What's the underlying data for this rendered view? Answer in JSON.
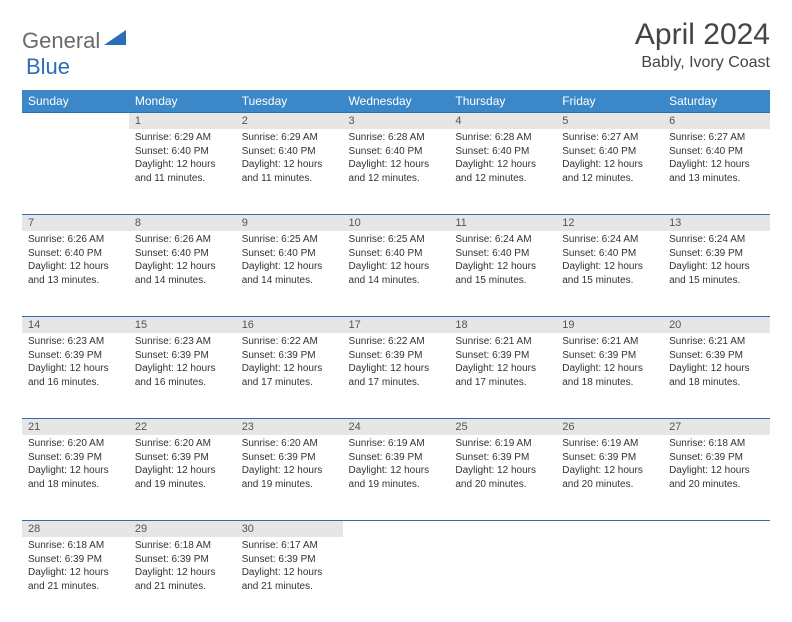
{
  "logo": {
    "part1": "General",
    "part2": "Blue"
  },
  "title": "April 2024",
  "location": "Bably, Ivory Coast",
  "colors": {
    "header_bg": "#3b87c8",
    "accent_line": "#2a6fb5",
    "daynum_bg": "#e6e6e6",
    "text": "#333333",
    "title_text": "#444444"
  },
  "columns": [
    "Sunday",
    "Monday",
    "Tuesday",
    "Wednesday",
    "Thursday",
    "Friday",
    "Saturday"
  ],
  "weeks": [
    [
      null,
      {
        "n": "1",
        "sr": "6:29 AM",
        "ss": "6:40 PM",
        "dl": "12 hours and 11 minutes."
      },
      {
        "n": "2",
        "sr": "6:29 AM",
        "ss": "6:40 PM",
        "dl": "12 hours and 11 minutes."
      },
      {
        "n": "3",
        "sr": "6:28 AM",
        "ss": "6:40 PM",
        "dl": "12 hours and 12 minutes."
      },
      {
        "n": "4",
        "sr": "6:28 AM",
        "ss": "6:40 PM",
        "dl": "12 hours and 12 minutes."
      },
      {
        "n": "5",
        "sr": "6:27 AM",
        "ss": "6:40 PM",
        "dl": "12 hours and 12 minutes."
      },
      {
        "n": "6",
        "sr": "6:27 AM",
        "ss": "6:40 PM",
        "dl": "12 hours and 13 minutes."
      }
    ],
    [
      {
        "n": "7",
        "sr": "6:26 AM",
        "ss": "6:40 PM",
        "dl": "12 hours and 13 minutes."
      },
      {
        "n": "8",
        "sr": "6:26 AM",
        "ss": "6:40 PM",
        "dl": "12 hours and 14 minutes."
      },
      {
        "n": "9",
        "sr": "6:25 AM",
        "ss": "6:40 PM",
        "dl": "12 hours and 14 minutes."
      },
      {
        "n": "10",
        "sr": "6:25 AM",
        "ss": "6:40 PM",
        "dl": "12 hours and 14 minutes."
      },
      {
        "n": "11",
        "sr": "6:24 AM",
        "ss": "6:40 PM",
        "dl": "12 hours and 15 minutes."
      },
      {
        "n": "12",
        "sr": "6:24 AM",
        "ss": "6:40 PM",
        "dl": "12 hours and 15 minutes."
      },
      {
        "n": "13",
        "sr": "6:24 AM",
        "ss": "6:39 PM",
        "dl": "12 hours and 15 minutes."
      }
    ],
    [
      {
        "n": "14",
        "sr": "6:23 AM",
        "ss": "6:39 PM",
        "dl": "12 hours and 16 minutes."
      },
      {
        "n": "15",
        "sr": "6:23 AM",
        "ss": "6:39 PM",
        "dl": "12 hours and 16 minutes."
      },
      {
        "n": "16",
        "sr": "6:22 AM",
        "ss": "6:39 PM",
        "dl": "12 hours and 17 minutes."
      },
      {
        "n": "17",
        "sr": "6:22 AM",
        "ss": "6:39 PM",
        "dl": "12 hours and 17 minutes."
      },
      {
        "n": "18",
        "sr": "6:21 AM",
        "ss": "6:39 PM",
        "dl": "12 hours and 17 minutes."
      },
      {
        "n": "19",
        "sr": "6:21 AM",
        "ss": "6:39 PM",
        "dl": "12 hours and 18 minutes."
      },
      {
        "n": "20",
        "sr": "6:21 AM",
        "ss": "6:39 PM",
        "dl": "12 hours and 18 minutes."
      }
    ],
    [
      {
        "n": "21",
        "sr": "6:20 AM",
        "ss": "6:39 PM",
        "dl": "12 hours and 18 minutes."
      },
      {
        "n": "22",
        "sr": "6:20 AM",
        "ss": "6:39 PM",
        "dl": "12 hours and 19 minutes."
      },
      {
        "n": "23",
        "sr": "6:20 AM",
        "ss": "6:39 PM",
        "dl": "12 hours and 19 minutes."
      },
      {
        "n": "24",
        "sr": "6:19 AM",
        "ss": "6:39 PM",
        "dl": "12 hours and 19 minutes."
      },
      {
        "n": "25",
        "sr": "6:19 AM",
        "ss": "6:39 PM",
        "dl": "12 hours and 20 minutes."
      },
      {
        "n": "26",
        "sr": "6:19 AM",
        "ss": "6:39 PM",
        "dl": "12 hours and 20 minutes."
      },
      {
        "n": "27",
        "sr": "6:18 AM",
        "ss": "6:39 PM",
        "dl": "12 hours and 20 minutes."
      }
    ],
    [
      {
        "n": "28",
        "sr": "6:18 AM",
        "ss": "6:39 PM",
        "dl": "12 hours and 21 minutes."
      },
      {
        "n": "29",
        "sr": "6:18 AM",
        "ss": "6:39 PM",
        "dl": "12 hours and 21 minutes."
      },
      {
        "n": "30",
        "sr": "6:17 AM",
        "ss": "6:39 PM",
        "dl": "12 hours and 21 minutes."
      },
      null,
      null,
      null,
      null
    ]
  ],
  "labels": {
    "sunrise": "Sunrise:",
    "sunset": "Sunset:",
    "daylight": "Daylight:"
  }
}
